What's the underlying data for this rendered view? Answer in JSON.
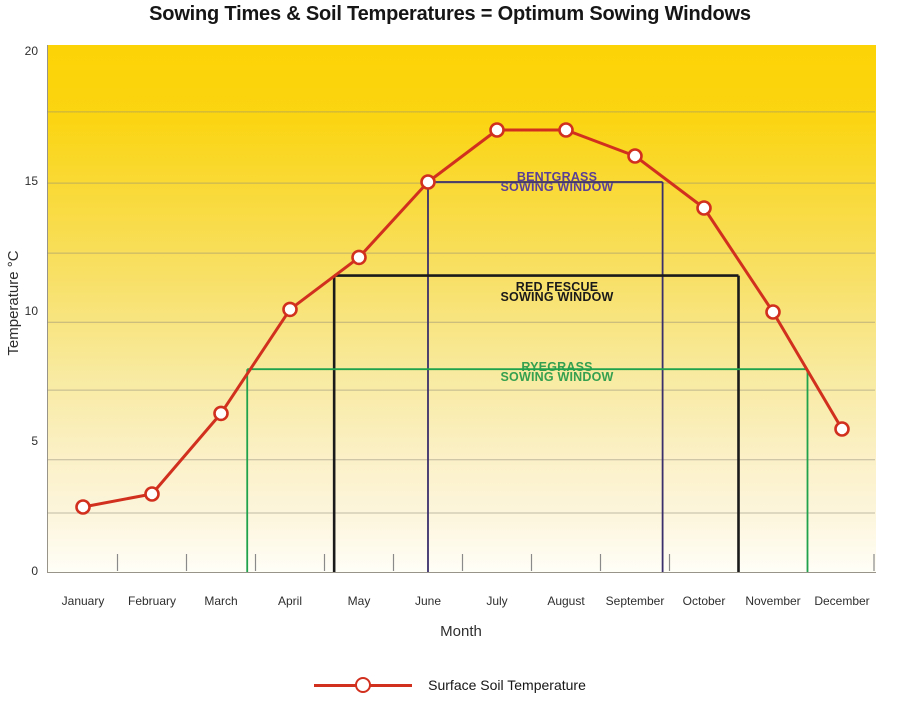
{
  "chart_data": {
    "type": "line",
    "title": "Sowing Times & Soil Temperatures = Optimum Sowing Windows",
    "xlabel": "Month",
    "ylabel": "Temperature °C",
    "categories": [
      "January",
      "February",
      "March",
      "April",
      "May",
      "June",
      "July",
      "August",
      "September",
      "October",
      "November",
      "December"
    ],
    "yticks": [
      0,
      5,
      10,
      15,
      20
    ],
    "ylim": [
      0,
      20.3
    ],
    "grid": "horizontal-bands",
    "gridline_fractions_from_top": [
      0.127,
      0.262,
      0.395,
      0.526,
      0.655,
      0.787,
      0.888
    ],
    "legend_position": "bottom-center",
    "series": [
      {
        "name": "Surface Soil Temperature",
        "color": "#D2301F",
        "marker": "open-circle",
        "values": [
          2.5,
          3,
          6.1,
          10.1,
          12.1,
          15,
          17,
          17,
          16,
          14,
          10,
          5.5
        ]
      }
    ],
    "sowing_windows": [
      {
        "grass": "Bentgrass",
        "label_line1": "BENTGRASS",
        "label_line2": "SOWING WINDOW",
        "temperature_c": 15,
        "start_month_index": 5.0,
        "end_month_index": 8.4,
        "line_color": "#3A2F6B",
        "label_color": "#5A3F96",
        "line_width": 1.8
      },
      {
        "grass": "Red Fescue",
        "label_line1": "RED FESCUE",
        "label_line2": "SOWING WINDOW",
        "temperature_c": 11.4,
        "start_month_index": 3.64,
        "end_month_index": 9.5,
        "line_color": "#1A1A1A",
        "label_color": "#1A1A1A",
        "line_width": 2.6
      },
      {
        "grass": "Ryegrass",
        "label_line1": "RYEGRASS",
        "label_line2": "SOWING WINDOW",
        "temperature_c": 7.8,
        "start_month_index": 2.38,
        "end_month_index": 10.5,
        "line_color": "#1FA24B",
        "label_color": "#35A04F",
        "line_width": 1.8
      }
    ]
  },
  "colors": {
    "background_top": "#FCD305",
    "background_bottom": "#FFFEF9",
    "gridline": "#8F8A7A",
    "axis": "#98948A",
    "tick": "#8A8A8A",
    "temperature_line": "#D2301F"
  }
}
